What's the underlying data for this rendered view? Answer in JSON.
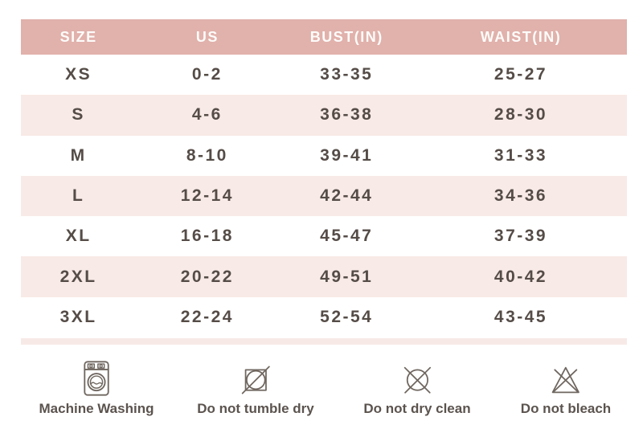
{
  "chart_data": {
    "type": "table",
    "columns": [
      "SIZE",
      "US",
      "BUST(IN)",
      "WAIST(IN)"
    ],
    "rows": [
      [
        "XS",
        "0-2",
        "33-35",
        "25-27"
      ],
      [
        "S",
        "4-6",
        "36-38",
        "28-30"
      ],
      [
        "M",
        "8-10",
        "39-41",
        "31-33"
      ],
      [
        "L",
        "12-14",
        "42-44",
        "34-36"
      ],
      [
        "XL",
        "16-18",
        "45-47",
        "37-39"
      ],
      [
        "2XL",
        "20-22",
        "49-51",
        "40-42"
      ],
      [
        "3XL",
        "22-24",
        "52-54",
        "43-45"
      ]
    ]
  },
  "care_items": [
    {
      "label": "Machine Washing",
      "icon": "machine-washing-icon"
    },
    {
      "label": "Do not tumble dry",
      "icon": "do-not-tumble-dry-icon"
    },
    {
      "label": "Do not dry clean",
      "icon": "do-not-dry-clean-icon"
    },
    {
      "label": "Do not bleach",
      "icon": "do-not-bleach-icon"
    }
  ],
  "colors": {
    "header_bg": "#e1b1ab",
    "header_text": "#fdfcfa",
    "row_alt_bg": "#f8eae6",
    "strip_bg": "#f7eae6",
    "body_text": "#554c47",
    "care_text": "#5b534e",
    "icon_stroke": "#6f665f",
    "page_bg": "#ffffff"
  }
}
